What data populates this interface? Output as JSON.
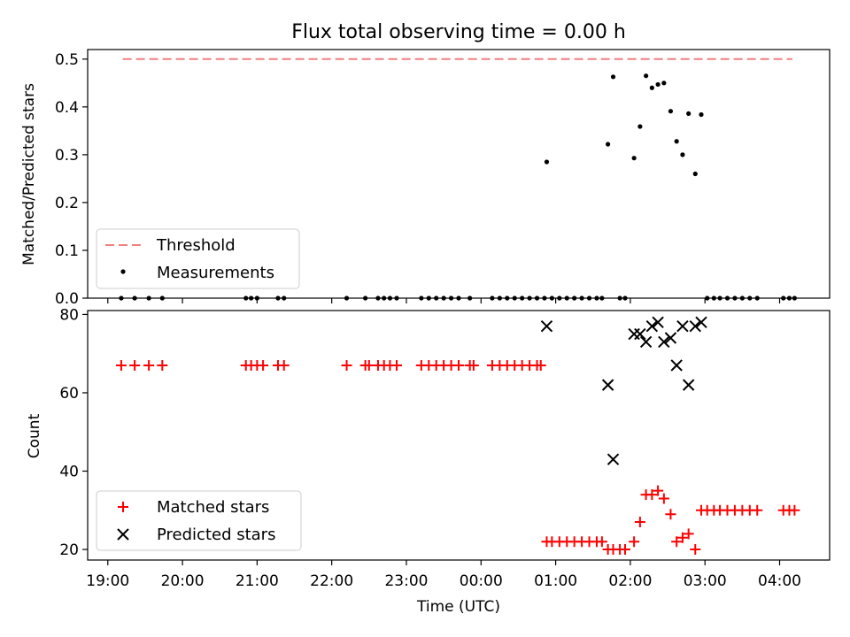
{
  "chart_data": [
    {
      "type": "scatter",
      "title": "Flux total observing time = 0.00 h",
      "xlabel": "",
      "ylabel": "Matched/Predicted stars",
      "ylim": [
        0,
        0.52
      ],
      "yticks": [
        0.0,
        0.1,
        0.2,
        0.3,
        0.4,
        0.5
      ],
      "ytick_labels": [
        "0.0",
        "0.1",
        "0.2",
        "0.3",
        "0.4",
        "0.5"
      ],
      "legend_position": "lower-left",
      "threshold": {
        "name": "Threshold",
        "value": 0.5,
        "color": "#f08080",
        "style": "dashed"
      },
      "series": [
        {
          "name": "Measurements",
          "color": "#000000",
          "marker": "dot",
          "points": [
            [
              19.18,
              0
            ],
            [
              19.36,
              0
            ],
            [
              19.55,
              0
            ],
            [
              19.73,
              0
            ],
            [
              20.85,
              0
            ],
            [
              20.92,
              0
            ],
            [
              21.0,
              0
            ],
            [
              21.28,
              0
            ],
            [
              21.36,
              0
            ],
            [
              22.2,
              0
            ],
            [
              22.45,
              0
            ],
            [
              22.62,
              0
            ],
            [
              22.7,
              0
            ],
            [
              22.78,
              0
            ],
            [
              22.87,
              0
            ],
            [
              23.2,
              0
            ],
            [
              23.3,
              0
            ],
            [
              23.4,
              0
            ],
            [
              23.5,
              0
            ],
            [
              23.6,
              0
            ],
            [
              23.7,
              0
            ],
            [
              23.85,
              0
            ],
            [
              24.15,
              0
            ],
            [
              24.25,
              0
            ],
            [
              24.35,
              0
            ],
            [
              24.45,
              0
            ],
            [
              24.55,
              0
            ],
            [
              24.65,
              0
            ],
            [
              24.75,
              0
            ],
            [
              24.85,
              0
            ],
            [
              24.88,
              0.285
            ],
            [
              24.95,
              0
            ],
            [
              25.05,
              0
            ],
            [
              25.15,
              0
            ],
            [
              25.25,
              0
            ],
            [
              25.35,
              0
            ],
            [
              25.45,
              0
            ],
            [
              25.55,
              0
            ],
            [
              25.62,
              0
            ],
            [
              25.7,
              0.322
            ],
            [
              25.77,
              0.463
            ],
            [
              25.86,
              0
            ],
            [
              25.93,
              0
            ],
            [
              26.05,
              0.293
            ],
            [
              26.13,
              0.359
            ],
            [
              26.21,
              0.465
            ],
            [
              26.29,
              0.44
            ],
            [
              26.37,
              0.447
            ],
            [
              26.45,
              0.45
            ],
            [
              26.54,
              0.391
            ],
            [
              26.62,
              0.328
            ],
            [
              26.7,
              0.3
            ],
            [
              26.78,
              0.386
            ],
            [
              26.87,
              0.26
            ],
            [
              26.95,
              0.384
            ],
            [
              27.03,
              0
            ],
            [
              27.12,
              0
            ],
            [
              27.2,
              0
            ],
            [
              27.3,
              0
            ],
            [
              27.4,
              0
            ],
            [
              27.5,
              0
            ],
            [
              27.6,
              0
            ],
            [
              27.7,
              0
            ],
            [
              28.05,
              0
            ],
            [
              28.13,
              0
            ],
            [
              28.2,
              0
            ]
          ]
        }
      ]
    },
    {
      "type": "scatter",
      "title": "",
      "xlabel": "Time (UTC)",
      "ylabel": "Count",
      "ylim": [
        17.3,
        81
      ],
      "xlim": [
        18.73,
        28.67
      ],
      "yticks": [
        20,
        40,
        60,
        80
      ],
      "ytick_labels": [
        "20",
        "40",
        "60",
        "80"
      ],
      "xticks": [
        19,
        20,
        21,
        22,
        23,
        24,
        25,
        26,
        27,
        28
      ],
      "xtick_labels": [
        "19:00",
        "20:00",
        "21:00",
        "22:00",
        "23:00",
        "00:00",
        "01:00",
        "02:00",
        "03:00",
        "04:00"
      ],
      "legend_position": "lower-left",
      "series": [
        {
          "name": "Matched stars",
          "color": "#ff0000",
          "marker": "plus",
          "points": [
            [
              19.18,
              67
            ],
            [
              19.36,
              67
            ],
            [
              19.55,
              67
            ],
            [
              19.73,
              67
            ],
            [
              20.85,
              67
            ],
            [
              20.92,
              67
            ],
            [
              21.0,
              67
            ],
            [
              21.08,
              67
            ],
            [
              21.28,
              67
            ],
            [
              21.36,
              67
            ],
            [
              22.2,
              67
            ],
            [
              22.45,
              67
            ],
            [
              22.5,
              67
            ],
            [
              22.62,
              67
            ],
            [
              22.7,
              67
            ],
            [
              22.78,
              67
            ],
            [
              22.87,
              67
            ],
            [
              23.2,
              67
            ],
            [
              23.3,
              67
            ],
            [
              23.4,
              67
            ],
            [
              23.5,
              67
            ],
            [
              23.6,
              67
            ],
            [
              23.7,
              67
            ],
            [
              23.85,
              67
            ],
            [
              23.9,
              67
            ],
            [
              24.15,
              67
            ],
            [
              24.25,
              67
            ],
            [
              24.35,
              67
            ],
            [
              24.45,
              67
            ],
            [
              24.55,
              67
            ],
            [
              24.65,
              67
            ],
            [
              24.75,
              67
            ],
            [
              24.8,
              67
            ],
            [
              24.88,
              22
            ],
            [
              24.95,
              22
            ],
            [
              25.05,
              22
            ],
            [
              25.15,
              22
            ],
            [
              25.25,
              22
            ],
            [
              25.35,
              22
            ],
            [
              25.45,
              22
            ],
            [
              25.55,
              22
            ],
            [
              25.62,
              22
            ],
            [
              25.7,
              20
            ],
            [
              25.77,
              20
            ],
            [
              25.86,
              20
            ],
            [
              25.93,
              20
            ],
            [
              26.05,
              22
            ],
            [
              26.13,
              27
            ],
            [
              26.21,
              34
            ],
            [
              26.29,
              34
            ],
            [
              26.37,
              35
            ],
            [
              26.45,
              33
            ],
            [
              26.54,
              29
            ],
            [
              26.62,
              22
            ],
            [
              26.7,
              23
            ],
            [
              26.78,
              24
            ],
            [
              26.87,
              20
            ],
            [
              26.95,
              30
            ],
            [
              27.03,
              30
            ],
            [
              27.12,
              30
            ],
            [
              27.2,
              30
            ],
            [
              27.3,
              30
            ],
            [
              27.4,
              30
            ],
            [
              27.5,
              30
            ],
            [
              27.6,
              30
            ],
            [
              27.7,
              30
            ],
            [
              28.05,
              30
            ],
            [
              28.13,
              30
            ],
            [
              28.2,
              30
            ]
          ]
        },
        {
          "name": "Predicted stars",
          "color": "#000000",
          "marker": "x",
          "points": [
            [
              24.88,
              77
            ],
            [
              25.7,
              62
            ],
            [
              25.77,
              43
            ],
            [
              26.05,
              75
            ],
            [
              26.13,
              75
            ],
            [
              26.21,
              73
            ],
            [
              26.29,
              77
            ],
            [
              26.37,
              78
            ],
            [
              26.45,
              73
            ],
            [
              26.54,
              74
            ],
            [
              26.62,
              67
            ],
            [
              26.7,
              77
            ],
            [
              26.78,
              62
            ],
            [
              26.87,
              77
            ],
            [
              26.95,
              78
            ]
          ]
        }
      ]
    }
  ]
}
